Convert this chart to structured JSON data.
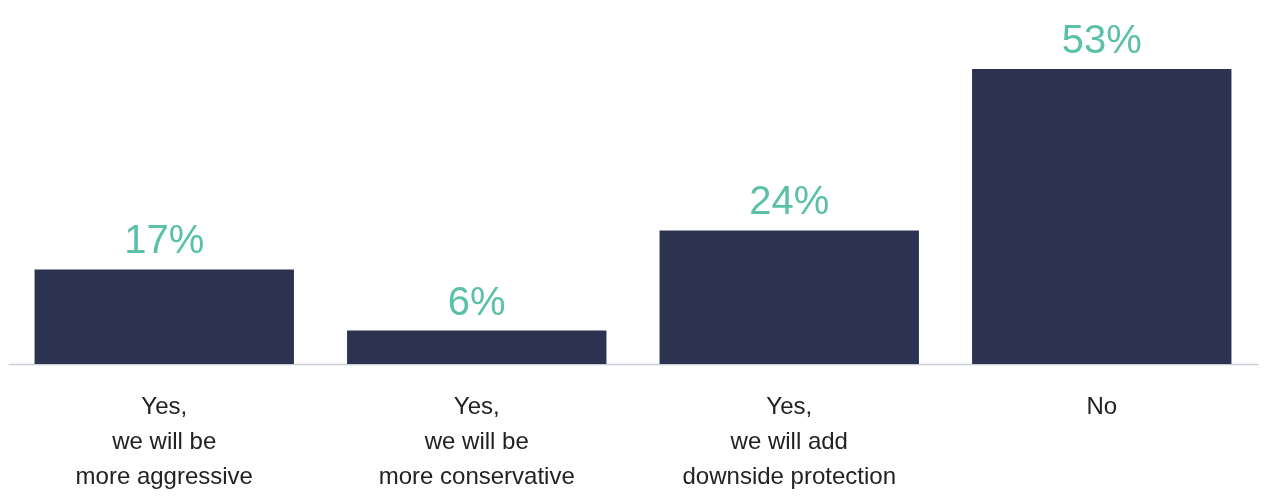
{
  "chart_data": {
    "type": "bar",
    "categories": [
      "Yes,\nwe will be\nmore aggressive",
      "Yes,\nwe will be\nmore conservative",
      "Yes,\nwe will add\ndownside protection",
      "No"
    ],
    "values": [
      17,
      6,
      24,
      53
    ],
    "value_labels": [
      "17%",
      "6%",
      "24%",
      "53%"
    ],
    "color": "#2b3350",
    "grid": false,
    "tick_labels": "x"
  }
}
